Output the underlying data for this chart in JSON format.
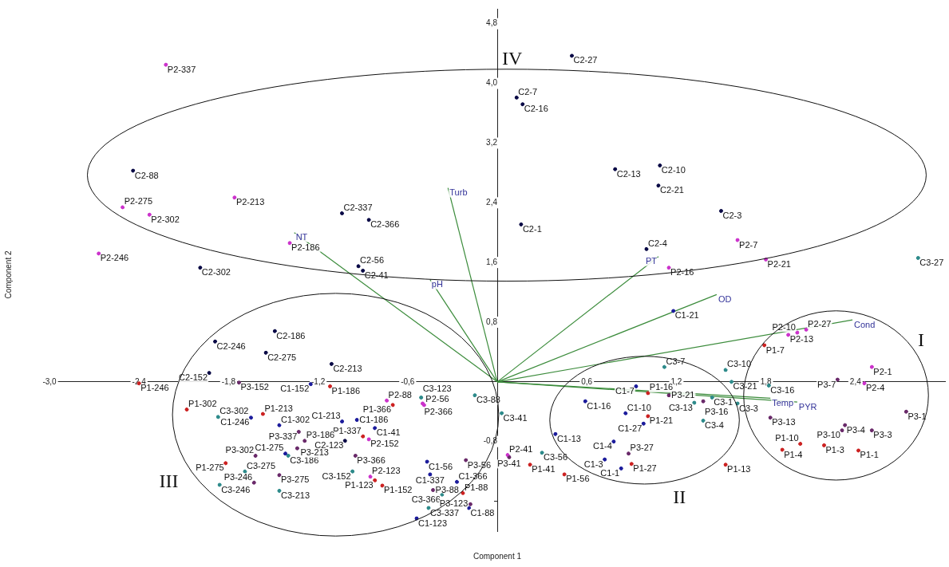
{
  "chart_data": {
    "type": "scatter",
    "xlabel": "Component 1",
    "ylabel": "Component 2",
    "xlim": [
      -3,
      3
    ],
    "ylim": [
      -2,
      5
    ],
    "xticks": [
      {
        "value": -3,
        "label": "-3,0"
      },
      {
        "value": -2.4,
        "label": "-2,4"
      },
      {
        "value": -1.8,
        "label": "-1,8"
      },
      {
        "value": -1.2,
        "label": "-1,2"
      },
      {
        "value": -0.6,
        "label": "-0,6"
      },
      {
        "value": 0.6,
        "label": "0,6"
      },
      {
        "value": 1.2,
        "label": "1,2"
      },
      {
        "value": 1.8,
        "label": "1,8"
      },
      {
        "value": 2.4,
        "label": "2,4"
      }
    ],
    "yticks": [
      {
        "value": -1.6,
        "label": null
      },
      {
        "value": -0.8,
        "label": "-0,8"
      },
      {
        "value": 0.8,
        "label": "0,8"
      },
      {
        "value": 1.6,
        "label": "1,6"
      },
      {
        "value": 2.4,
        "label": "2,4"
      },
      {
        "value": 3.2,
        "label": "3,2"
      },
      {
        "value": 4,
        "label": "4,0"
      },
      {
        "value": 4.8,
        "label": "4,8"
      }
    ],
    "grid": false,
    "legend": false,
    "marker": "circle",
    "annotations": [
      "IV",
      "III",
      "II",
      "I"
    ],
    "series": [
      {
        "color": "#0a0a46",
        "x": [
          0.5,
          0.13,
          0.17,
          0.79,
          1.09,
          1.08,
          1.5,
          0.16,
          1.0,
          -2.44,
          -1.04,
          -0.86,
          -1.99,
          -0.93,
          -0.9,
          -1.49,
          -1.89,
          -1.55,
          -1.93,
          -1.11,
          -1.02
        ],
        "values": [
          4.37,
          3.81,
          3.72,
          2.85,
          2.9,
          2.63,
          2.29,
          2.11,
          1.78,
          2.83,
          2.26,
          2.17,
          1.53,
          1.55,
          1.49,
          0.68,
          0.54,
          0.39,
          0.12,
          0.24,
          -0.79
        ],
        "value_labels": [
          "C2-27",
          "C2-7",
          "C2-16",
          "C2-13",
          "C2-10",
          "C2-21",
          "C2-3",
          "C2-1",
          "C2-4",
          "C2-88",
          "C2-337",
          "C2-366",
          "C2-302",
          "C2-56",
          "C2-41",
          "C2-186",
          "C2-246",
          "C2-275",
          "C2-152",
          "C2-213",
          "C2-123"
        ]
      },
      {
        "color": "#cc33cc",
        "x": [
          -2.22,
          -2.51,
          -2.33,
          -1.76,
          -2.67,
          -1.39,
          1.61,
          1.8,
          1.15,
          1.95,
          2.01,
          2.07,
          2.51,
          2.46,
          -0.74,
          -0.5,
          -0.49,
          -0.86,
          -0.85,
          0.07
        ],
        "values": [
          4.25,
          2.34,
          2.24,
          2.47,
          1.72,
          1.86,
          1.9,
          1.64,
          1.53,
          0.63,
          0.66,
          0.7,
          0.2,
          -0.02,
          -0.25,
          -0.29,
          -0.31,
          -0.77,
          -1.27,
          -0.98
        ],
        "value_labels": [
          "P2-337",
          "P2-275",
          "P2-302",
          "P2-213",
          "P2-246",
          "P2-186",
          "P2-7",
          "P2-21",
          "P2-16",
          "P2-13",
          "P2-10",
          "P2-27",
          "P2-1",
          "P2-4",
          "P2-88",
          "P2-366",
          "P2-56",
          "P2-152",
          "P2-123",
          "P2-41"
        ]
      },
      {
        "color": "#cc2222",
        "x": [
          -2.4,
          -2.08,
          -1.57,
          -1.82,
          -1.12,
          -0.7,
          -0.9,
          -0.82,
          -0.77,
          0.22,
          0.45,
          -0.23,
          1.01,
          1.01,
          0.9,
          1.53,
          1.79,
          1.91,
          2.03,
          2.19,
          2.42
        ],
        "values": [
          -0.02,
          -0.37,
          -0.43,
          -1.09,
          -0.06,
          -0.31,
          -0.73,
          -1.32,
          -1.39,
          -1.11,
          -1.24,
          -1.49,
          -0.15,
          -0.46,
          -1.1,
          -1.11,
          0.49,
          -0.91,
          -0.83,
          -0.85,
          -0.92
        ],
        "value_labels": [
          "P1-246",
          "P1-302",
          "P1-213",
          "P1-275",
          "P1-186",
          "P1-366",
          "P1-337",
          "P1-123",
          "P1-152",
          "P1-41",
          "P1-56",
          "P1-88",
          "P1-16",
          "P1-21",
          "P1-27",
          "P1-13",
          "P1-7",
          "P1-4",
          "P1-10",
          "P1-3",
          "P1-1"
        ]
      },
      {
        "color": "#1c1c9c",
        "x": [
          -1.25,
          -1.65,
          -1.46,
          -1.42,
          -1.04,
          -0.94,
          -0.82,
          -0.47,
          -0.45,
          -0.27,
          -0.19,
          -0.54,
          0.59,
          0.39,
          0.93,
          0.86,
          0.98,
          0.78,
          0.72,
          0.83,
          1.18
        ],
        "values": [
          -0.03,
          -0.48,
          -0.58,
          -0.96,
          -0.53,
          -0.51,
          -0.62,
          -1.07,
          -1.24,
          -1.34,
          -1.69,
          -1.83,
          -0.26,
          -0.7,
          -0.06,
          -0.42,
          -0.56,
          -0.8,
          -1.04,
          -1.16,
          0.95
        ],
        "value_labels": [
          "C1-152",
          "C1-246",
          "C1-302",
          "C1-275",
          "C1-213",
          "C1-186",
          "C1-41",
          "C1-56",
          "C1-337",
          "C1-366",
          "C1-88",
          "C1-123",
          "C1-16",
          "C1-13",
          "C1-7",
          "C1-10",
          "C1-27",
          "C1-4",
          "C1-3",
          "C1-1",
          "C1-21"
        ]
      },
      {
        "color": "#2e8b8b",
        "x": [
          2.82,
          1.12,
          1.53,
          1.57,
          1.44,
          1.82,
          1.61,
          1.32,
          1.38,
          0.3,
          0.03,
          -0.15,
          -0.51,
          -0.97,
          -0.37,
          -0.46,
          -1.87,
          -1.69,
          -1.86,
          -1.46,
          -1.4
        ],
        "values": [
          1.66,
          0.2,
          0.16,
          0.0,
          -0.21,
          -0.05,
          -0.29,
          -0.28,
          -0.52,
          -0.95,
          -0.42,
          -0.18,
          -0.21,
          -1.2,
          -1.51,
          -1.69,
          -0.47,
          -1.2,
          -1.38,
          -1.46,
          -0.99
        ],
        "value_labels": [
          "C3-27",
          "C3-7",
          "C3-10",
          "C3-21",
          "C3-1",
          "C3-16",
          "C3-3",
          "C3-13",
          "C3-4",
          "C3-56",
          "C3-41",
          "C3-88",
          "C3-123",
          "C3-152",
          "C3-366",
          "C3-337",
          "C3-302",
          "C3-275",
          "C3-246",
          "C3-213",
          "C3-186"
        ]
      },
      {
        "color": "#6a2a6a",
        "x": [
          -1.73,
          -1.33,
          -1.29,
          -1.34,
          -1.62,
          -1.46,
          -1.63,
          -0.95,
          -0.18,
          -0.21,
          -0.43,
          0.08,
          0.88,
          1.15,
          1.38,
          1.83,
          2.28,
          2.33,
          2.31,
          2.51,
          2.74
        ],
        "values": [
          -0.01,
          -0.67,
          -0.79,
          -0.89,
          -0.99,
          -1.25,
          -1.35,
          -0.99,
          -1.64,
          -1.05,
          -1.45,
          -1.01,
          -0.96,
          -0.18,
          -0.26,
          -0.48,
          0.03,
          -0.58,
          -0.65,
          -0.65,
          -0.4
        ],
        "value_labels": [
          "P3-152",
          "P3-337",
          "P3-186",
          "P3-213",
          "P3-302",
          "P3-275",
          "P3-246",
          "P3-366",
          "P3-123",
          "P3-56",
          "P3-88",
          "P3-41",
          "P3-27",
          "P3-21",
          "P3-16",
          "P3-13",
          "P3-7",
          "P3-4",
          "P3-10",
          "P3-3",
          "P3-1"
        ]
      },
      {
        "type": "line",
        "marker": "none",
        "name": "Turb",
        "color": "#3c8c3c",
        "x": [
          0,
          -0.33
        ],
        "values": [
          0,
          2.6
        ]
      },
      {
        "type": "line",
        "marker": "none",
        "name": "NT",
        "color": "#3c8c3c",
        "x": [
          0,
          -1.36
        ],
        "values": [
          0,
          2.0
        ]
      },
      {
        "type": "line",
        "marker": "none",
        "name": "pH",
        "color": "#3c8c3c",
        "x": [
          0,
          -0.45
        ],
        "values": [
          0,
          1.37
        ]
      },
      {
        "type": "line",
        "marker": "none",
        "name": "PT",
        "color": "#3c8c3c",
        "x": [
          0,
          1.08
        ],
        "values": [
          0,
          1.68
        ]
      },
      {
        "type": "line",
        "marker": "none",
        "name": "OD",
        "color": "#3c8c3c",
        "x": [
          0,
          1.47
        ],
        "values": [
          0,
          1.17
        ]
      },
      {
        "type": "line",
        "marker": "none",
        "name": "Cond",
        "color": "#3c8c3c",
        "x": [
          0,
          2.38
        ],
        "values": [
          0,
          0.83
        ]
      },
      {
        "type": "line",
        "marker": "none",
        "name": "Temp",
        "color": "#3c8c3c",
        "x": [
          0,
          1.83
        ],
        "values": [
          0,
          -0.22
        ]
      },
      {
        "type": "line",
        "marker": "none",
        "name": "PYR",
        "color": "#3c8c3c",
        "x": [
          0,
          2.01
        ],
        "values": [
          0,
          -0.27
        ]
      }
    ]
  }
}
